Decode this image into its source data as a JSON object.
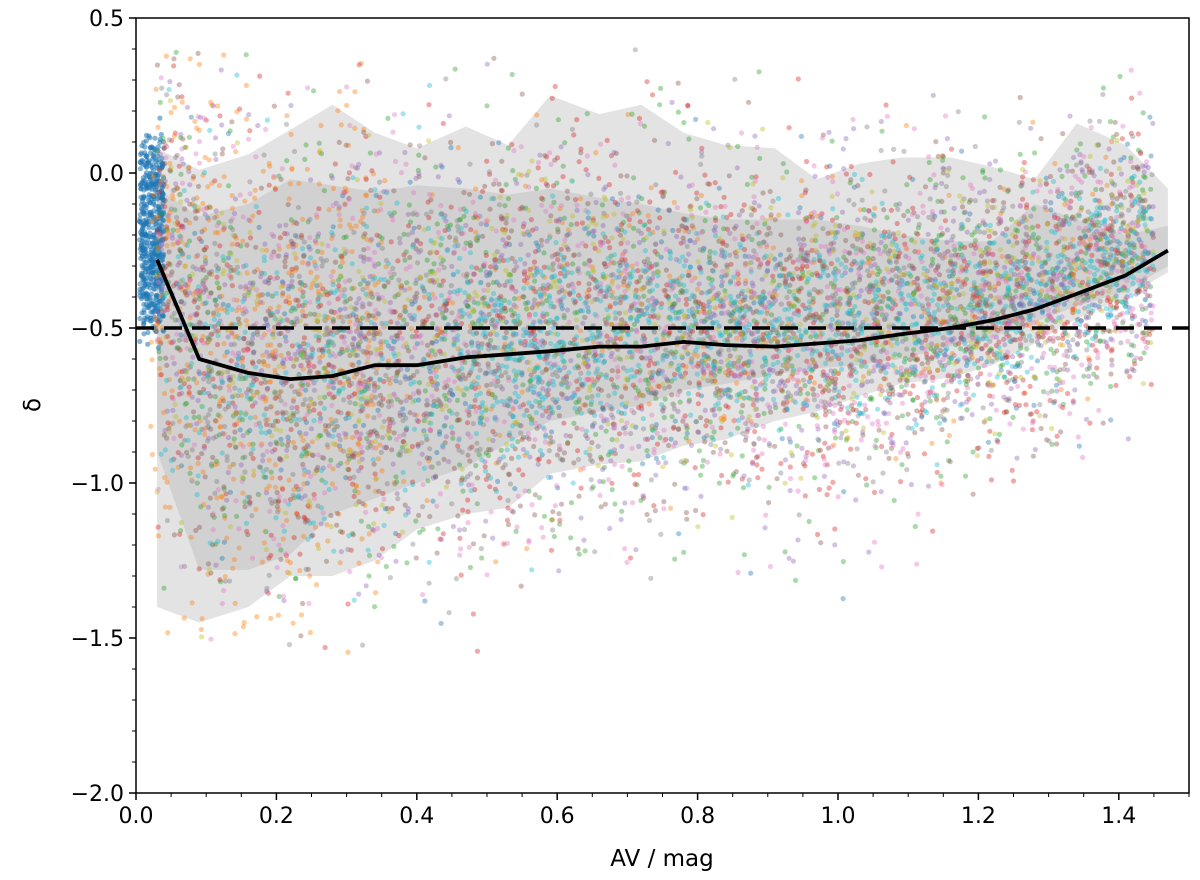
{
  "chart_data": {
    "type": "scatter",
    "xlabel": "AV / mag",
    "ylabel": "δ",
    "xlim": [
      0.0,
      1.5
    ],
    "ylim": [
      -2.0,
      0.5
    ],
    "x_ticks": [
      0.0,
      0.2,
      0.4,
      0.6,
      0.8,
      1.0,
      1.2,
      1.4
    ],
    "x_tick_labels": [
      "0.0",
      "0.2",
      "0.4",
      "0.6",
      "0.8",
      "1.0",
      "1.2",
      "1.4"
    ],
    "y_ticks": [
      0.5,
      0.0,
      -0.5,
      -1.0,
      -1.5,
      -2.0
    ],
    "y_tick_labels": [
      "0.5",
      "0.0",
      "−0.5",
      "−1.0",
      "−1.5",
      "−2.0"
    ],
    "grid": false,
    "legend": "none",
    "reference_line": {
      "y": -0.5,
      "style": "dashed",
      "color": "#000000"
    },
    "median_line": {
      "color": "#000000",
      "x": [
        0.03,
        0.09,
        0.16,
        0.22,
        0.28,
        0.34,
        0.4,
        0.47,
        0.53,
        0.59,
        0.66,
        0.72,
        0.78,
        0.84,
        0.91,
        0.97,
        1.03,
        1.09,
        1.16,
        1.22,
        1.28,
        1.34,
        1.41,
        1.47
      ],
      "y": [
        -0.28,
        -0.6,
        -0.645,
        -0.665,
        -0.655,
        -0.62,
        -0.62,
        -0.595,
        -0.585,
        -0.575,
        -0.56,
        -0.56,
        -0.545,
        -0.555,
        -0.56,
        -0.55,
        -0.54,
        -0.52,
        -0.5,
        -0.475,
        -0.44,
        -0.39,
        -0.33,
        -0.25
      ]
    },
    "bands": [
      {
        "level": "outer",
        "color": "#d9d9d9",
        "x": [
          0.03,
          0.09,
          0.16,
          0.22,
          0.28,
          0.34,
          0.4,
          0.47,
          0.53,
          0.59,
          0.66,
          0.72,
          0.78,
          0.84,
          0.91,
          0.97,
          1.03,
          1.09,
          1.16,
          1.22,
          1.28,
          1.34,
          1.41,
          1.47
        ],
        "upper": [
          0.08,
          0.01,
          0.06,
          0.14,
          0.22,
          0.13,
          0.08,
          0.15,
          0.09,
          0.25,
          0.19,
          0.22,
          0.13,
          0.09,
          0.08,
          -0.02,
          0.03,
          0.05,
          0.05,
          0.02,
          -0.02,
          0.16,
          0.09,
          -0.05
        ],
        "lower": [
          -1.4,
          -1.45,
          -1.4,
          -1.3,
          -1.3,
          -1.25,
          -1.15,
          -1.1,
          -1.08,
          -0.97,
          -0.94,
          -0.93,
          -0.88,
          -0.86,
          -0.8,
          -0.77,
          -0.72,
          -0.68,
          -0.66,
          -0.62,
          -0.55,
          -0.47,
          -0.4,
          -0.32
        ]
      },
      {
        "level": "inner",
        "color": "#c4c4c4",
        "x": [
          0.03,
          0.09,
          0.16,
          0.22,
          0.28,
          0.34,
          0.4,
          0.47,
          0.53,
          0.59,
          0.66,
          0.72,
          0.78,
          0.84,
          0.91,
          0.97,
          1.03,
          1.09,
          1.16,
          1.22,
          1.28,
          1.34,
          1.41,
          1.47
        ],
        "upper": [
          -0.05,
          -0.14,
          -0.1,
          -0.02,
          -0.04,
          -0.06,
          -0.04,
          -0.05,
          -0.07,
          -0.05,
          -0.08,
          -0.1,
          -0.13,
          -0.15,
          -0.15,
          -0.15,
          -0.17,
          -0.2,
          -0.22,
          -0.22,
          -0.1,
          -0.15,
          -0.2,
          -0.17
        ],
        "lower": [
          -0.9,
          -1.28,
          -1.28,
          -1.23,
          -1.1,
          -1.05,
          -1.0,
          -0.95,
          -0.87,
          -0.8,
          -0.77,
          -0.75,
          -0.7,
          -0.68,
          -0.65,
          -0.63,
          -0.62,
          -0.6,
          -0.56,
          -0.53,
          -0.48,
          -0.43,
          -0.38,
          -0.3
        ]
      }
    ],
    "series": [
      {
        "color": "#1f77b4",
        "x_range": [
          0.005,
          0.04
        ],
        "y_center": -0.2,
        "y_spread": 0.33,
        "count": 520
      },
      {
        "color": "#1f77b4",
        "x_range": [
          0.06,
          1.45
        ],
        "y_center": -0.55,
        "y_spread": 0.28,
        "count": 500
      },
      {
        "color": "#ff7f0e",
        "x_range": [
          0.02,
          0.35
        ],
        "y_center": -0.5,
        "y_spread": 0.48,
        "count": 500
      },
      {
        "color": "#ff7f0e",
        "x_range": [
          0.3,
          1.4
        ],
        "y_center": -0.55,
        "y_spread": 0.28,
        "count": 350
      },
      {
        "color": "#2ca02c",
        "x_range": [
          0.03,
          1.45
        ],
        "y_center": -0.55,
        "y_spread": 0.36,
        "count": 1000
      },
      {
        "color": "#d62728",
        "x_range": [
          0.03,
          1.45
        ],
        "y_center": -0.55,
        "y_spread": 0.35,
        "count": 1000
      },
      {
        "color": "#9467bd",
        "x_range": [
          0.03,
          1.45
        ],
        "y_center": -0.55,
        "y_spread": 0.33,
        "count": 1000
      },
      {
        "color": "#8c564b",
        "x_range": [
          0.03,
          1.45
        ],
        "y_center": -0.55,
        "y_spread": 0.33,
        "count": 1000
      },
      {
        "color": "#e377c2",
        "x_range": [
          0.03,
          1.45
        ],
        "y_center": -0.55,
        "y_spread": 0.35,
        "count": 900
      },
      {
        "color": "#7f7f7f",
        "x_range": [
          0.03,
          1.45
        ],
        "y_center": -0.55,
        "y_spread": 0.32,
        "count": 800
      },
      {
        "color": "#bcbd22",
        "x_range": [
          0.03,
          1.45
        ],
        "y_center": -0.55,
        "y_spread": 0.28,
        "count": 600
      },
      {
        "color": "#17becf",
        "x_range": [
          0.45,
          1.45
        ],
        "y_center": -0.55,
        "y_spread": 0.2,
        "count": 900
      },
      {
        "color": "#17becf",
        "x_range": [
          0.03,
          0.6
        ],
        "y_center": -0.6,
        "y_spread": 0.3,
        "count": 300
      }
    ]
  }
}
